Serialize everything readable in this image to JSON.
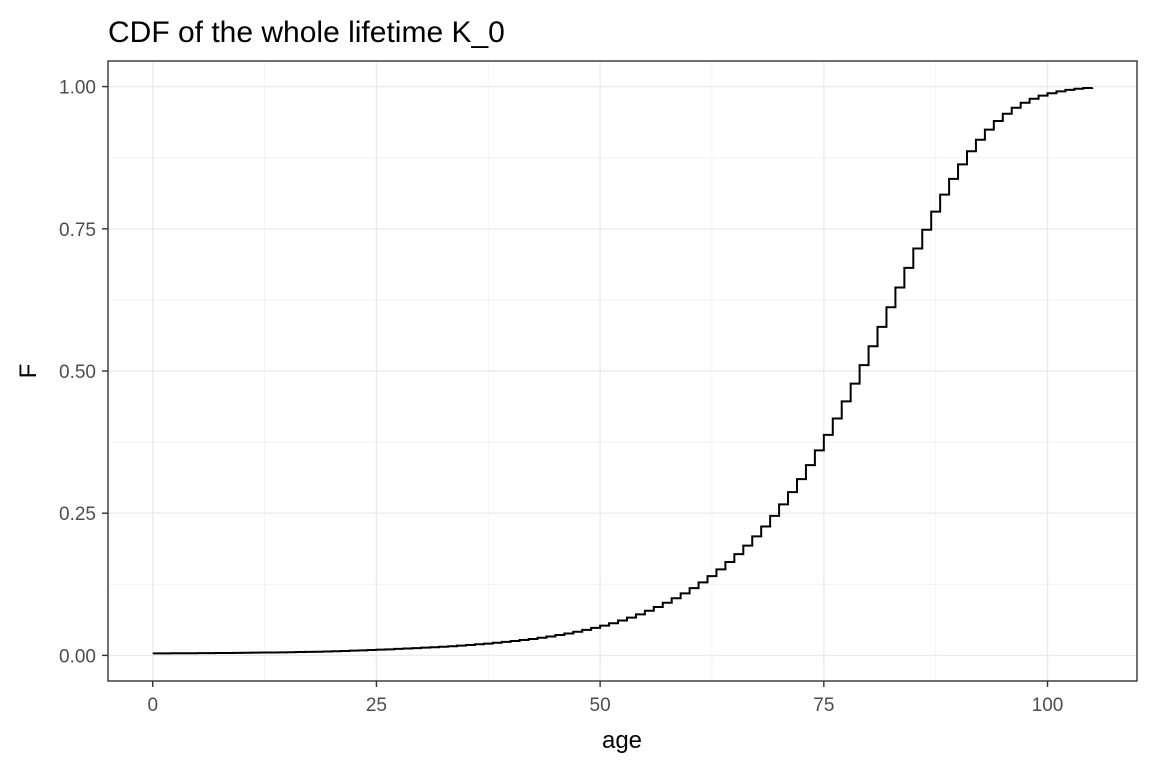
{
  "chart_data": {
    "type": "line",
    "step": true,
    "title": "CDF of the whole lifetime K_0",
    "xlabel": "age",
    "ylabel": "F",
    "xlim": [
      -5,
      110
    ],
    "ylim": [
      -0.045,
      1.045
    ],
    "x_ticks": [
      0,
      25,
      50,
      75,
      100
    ],
    "x_tick_labels": [
      "0",
      "25",
      "50",
      "75",
      "100"
    ],
    "y_ticks": [
      0,
      0.25,
      0.5,
      0.75,
      1
    ],
    "y_tick_labels": [
      "0.00",
      "0.25",
      "0.50",
      "0.75",
      "1.00"
    ],
    "grid": true,
    "legend": "none",
    "colors": {
      "line": "#000000",
      "grid": "#ebebeb",
      "border": "#333333"
    },
    "series": [
      {
        "x": [
          0,
          1,
          2,
          3,
          4,
          5,
          6,
          7,
          8,
          9,
          10,
          11,
          12,
          13,
          14,
          15,
          16,
          17,
          18,
          19,
          20,
          21,
          22,
          23,
          24,
          25,
          26,
          27,
          28,
          29,
          30,
          31,
          32,
          33,
          34,
          35,
          36,
          37,
          38,
          39,
          40,
          41,
          42,
          43,
          44,
          45,
          46,
          47,
          48,
          49,
          50,
          51,
          52,
          53,
          54,
          55,
          56,
          57,
          58,
          59,
          60,
          61,
          62,
          63,
          64,
          65,
          66,
          67,
          68,
          69,
          70,
          71,
          72,
          73,
          74,
          75,
          76,
          77,
          78,
          79,
          80,
          81,
          82,
          83,
          84,
          85,
          86,
          87,
          88,
          89,
          90,
          91,
          92,
          93,
          94,
          95,
          96,
          97,
          98,
          99,
          100,
          101,
          102,
          103,
          104,
          105
        ],
        "y": [
          0.0035,
          0.0036,
          0.0037,
          0.0038,
          0.0039,
          0.004,
          0.0041,
          0.0042,
          0.0043,
          0.0044,
          0.0046,
          0.0048,
          0.005,
          0.0052,
          0.0054,
          0.0056,
          0.0059,
          0.0062,
          0.0065,
          0.0069,
          0.0073,
          0.0078,
          0.0083,
          0.0089,
          0.0095,
          0.0101,
          0.0107,
          0.0114,
          0.0121,
          0.0128,
          0.0136,
          0.0144,
          0.0153,
          0.0162,
          0.0172,
          0.0183,
          0.0195,
          0.0208,
          0.0222,
          0.0237,
          0.0253,
          0.027,
          0.0289,
          0.031,
          0.0333,
          0.0358,
          0.0385,
          0.0415,
          0.0448,
          0.0484,
          0.0523,
          0.0566,
          0.0613,
          0.0664,
          0.0722,
          0.0784,
          0.0852,
          0.0925,
          0.1004,
          0.109,
          0.1183,
          0.1284,
          0.1393,
          0.1512,
          0.1641,
          0.178,
          0.193,
          0.2092,
          0.2266,
          0.2454,
          0.2655,
          0.287,
          0.31,
          0.3345,
          0.3604,
          0.3878,
          0.4165,
          0.4466,
          0.4779,
          0.5103,
          0.5436,
          0.5776,
          0.6121,
          0.6468,
          0.6813,
          0.7153,
          0.7484,
          0.7801,
          0.81,
          0.8378,
          0.8633,
          0.8863,
          0.9066,
          0.9243,
          0.9395,
          0.9523,
          0.9629,
          0.9716,
          0.9786,
          0.9841,
          0.9884,
          0.9917,
          0.9942,
          0.9961,
          0.9975,
          0.9985
        ]
      }
    ]
  }
}
